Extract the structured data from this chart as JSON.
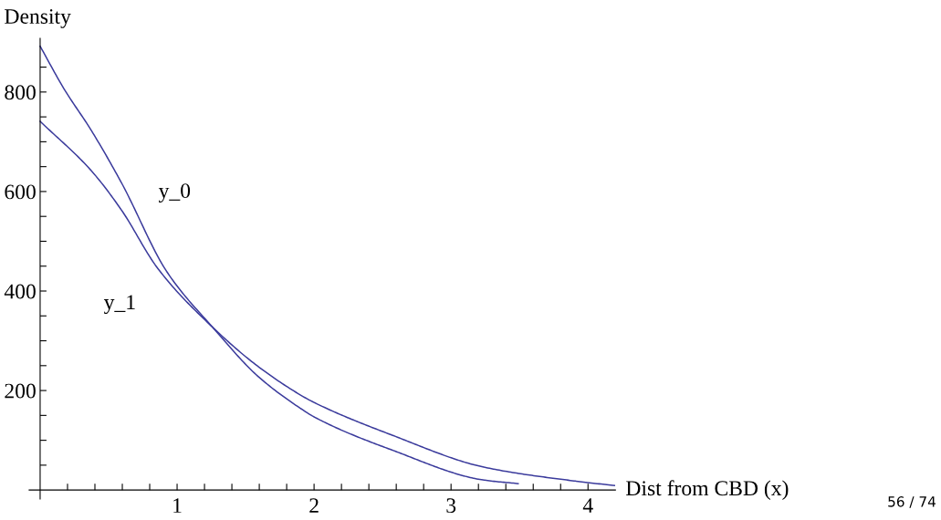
{
  "chart_data": {
    "type": "line",
    "xlabel": "Dist from CBD (x)",
    "ylabel": "Density",
    "series": [
      {
        "name": "y_0",
        "color": "#3b3b9c",
        "x": [
          0,
          0.173,
          0.373,
          0.593,
          0.927,
          1.26,
          1.593,
          1.907,
          2,
          2.573,
          3.24,
          3.49
        ],
        "values": [
          892,
          807,
          723,
          618,
          438,
          327,
          228,
          163,
          147,
          80,
          20,
          13
        ]
      },
      {
        "name": "y_1",
        "color": "#3b3b9c",
        "x": [
          0,
          0.373,
          0.593,
          0.86,
          1.26,
          1.593,
          1.907,
          2,
          2.573,
          3.24,
          3.907,
          4.193
        ],
        "values": [
          741,
          642,
          563,
          445,
          327,
          248,
          190,
          176,
          110,
          46,
          18,
          9
        ]
      }
    ],
    "annotations": [
      "56 / 74"
    ],
    "xlim": [
      -0.08,
      4.2
    ],
    "ylim": [
      -18,
      908
    ],
    "xticks": [
      {
        "value": 0.2,
        "label": null
      },
      {
        "value": 0.4,
        "label": null
      },
      {
        "value": 0.6,
        "label": null
      },
      {
        "value": 0.8,
        "label": null
      },
      1,
      {
        "value": 1.2,
        "label": null
      },
      {
        "value": 1.4,
        "label": null
      },
      {
        "value": 1.6,
        "label": null
      },
      {
        "value": 1.8,
        "label": null
      },
      2,
      {
        "value": 2.2,
        "label": null
      },
      {
        "value": 2.4,
        "label": null
      },
      {
        "value": 2.6,
        "label": null
      },
      {
        "value": 2.8,
        "label": null
      },
      3,
      {
        "value": 3.2,
        "label": null
      },
      {
        "value": 3.4,
        "label": null
      },
      {
        "value": 3.6,
        "label": null
      },
      {
        "value": 3.8,
        "label": null
      },
      4
    ],
    "yticks": [
      {
        "value": 50,
        "label": null
      },
      {
        "value": 100,
        "label": null
      },
      {
        "value": 150,
        "label": null
      },
      200,
      {
        "value": 250,
        "label": null
      },
      {
        "value": 300,
        "label": null
      },
      {
        "value": 350,
        "label": null
      },
      400,
      {
        "value": 450,
        "label": null
      },
      {
        "value": 500,
        "label": null
      },
      {
        "value": 550,
        "label": null
      },
      600,
      {
        "value": 650,
        "label": null
      },
      {
        "value": 700,
        "label": null
      },
      {
        "value": 750,
        "label": null
      },
      800,
      {
        "value": 850,
        "label": null
      }
    ],
    "grid": false,
    "marker": "none",
    "line_style": "solid",
    "legend": false
  }
}
